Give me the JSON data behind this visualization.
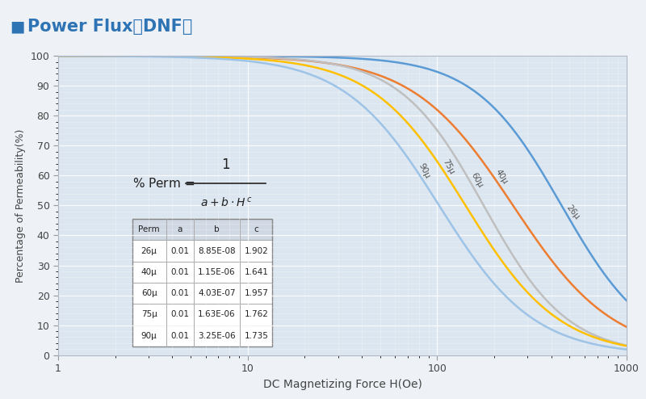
{
  "title": "Power Flux（DNF）",
  "xlabel": "DC Magnetizing Force H(Oe)",
  "ylabel": "Percentage of Permeability(%)",
  "fig_bg_color": "#eef2f7",
  "plot_bg_color": "#dce6f0",
  "border_color": "#b0b8c8",
  "curves": [
    {
      "label": "26μ",
      "a": 0.01,
      "b": 8.85e-08,
      "c": 1.902,
      "color": "#5b9bd5",
      "lw": 1.8
    },
    {
      "label": "40μ",
      "a": 0.01,
      "b": 1.15e-06,
      "c": 1.641,
      "color": "#ed7d31",
      "lw": 1.8
    },
    {
      "label": "60μ",
      "a": 0.01,
      "b": 4.03e-07,
      "c": 1.957,
      "color": "#bfbfbf",
      "lw": 1.8
    },
    {
      "label": "75μ",
      "a": 0.01,
      "b": 1.63e-06,
      "c": 1.762,
      "color": "#ffc000",
      "lw": 1.8
    },
    {
      "label": "90μ",
      "a": 0.01,
      "b": 3.25e-06,
      "c": 1.735,
      "color": "#9dc3e6",
      "lw": 1.8
    }
  ],
  "label_H": {
    "26μ": 500,
    "40μ": 210,
    "60μ": 155,
    "75μ": 110,
    "90μ": 82
  },
  "label_rot": {
    "26μ": -52,
    "40μ": -58,
    "60μ": -60,
    "75μ": -62,
    "90μ": -63
  },
  "table_data": [
    [
      "26μ",
      "0.01",
      "8.85E-08",
      "1.902"
    ],
    [
      "40μ",
      "0.01",
      "1.15E-06",
      "1.641"
    ],
    [
      "60μ",
      "0.01",
      "4.03E-07",
      "1.957"
    ],
    [
      "75μ",
      "0.01",
      "1.63E-06",
      "1.762"
    ],
    [
      "90μ",
      "0.01",
      "3.25E-06",
      "1.735"
    ]
  ],
  "table_headers": [
    "Perm",
    "a",
    "b",
    "c"
  ],
  "xlim": [
    1,
    1000
  ],
  "ylim": [
    0,
    100
  ],
  "yticks": [
    0,
    10,
    20,
    30,
    40,
    50,
    60,
    70,
    80,
    90,
    100
  ],
  "xticks": [
    1,
    10,
    100,
    1000
  ]
}
